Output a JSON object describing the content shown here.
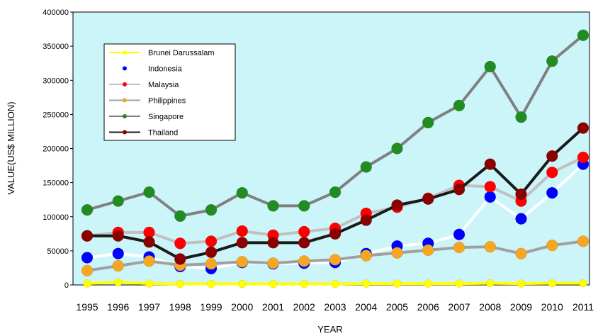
{
  "chart_data": {
    "type": "line",
    "title": "",
    "xlabel": "YEAR",
    "ylabel": "VALUE(US$ MILLION)",
    "ylim": [
      0,
      400000
    ],
    "yticks": [
      0,
      50000,
      100000,
      150000,
      200000,
      250000,
      300000,
      350000,
      400000
    ],
    "grid": false,
    "legend_position": "top-left",
    "categories": [
      "1995",
      "1996",
      "1997",
      "1998",
      "1999",
      "2000",
      "2001",
      "2002",
      "2003",
      "2004",
      "2005",
      "2006",
      "2007",
      "2008",
      "2009",
      "2010",
      "2011"
    ],
    "series": [
      {
        "name": "Brunei Darussalam",
        "line_color": "#ffff00",
        "marker_color": "#ffff00",
        "values": [
          2000,
          4000,
          2000,
          1500,
          1500,
          1500,
          1500,
          1500,
          1500,
          2000,
          2000,
          2000,
          2000,
          2500,
          2000,
          2500,
          2500
        ]
      },
      {
        "name": "Indonesia",
        "line_color": "#ffffff",
        "marker_color": "#0000ff",
        "values": [
          40000,
          46000,
          41000,
          27000,
          24000,
          33000,
          31000,
          32000,
          33000,
          46000,
          57000,
          61000,
          74000,
          129000,
          97000,
          135000,
          177000
        ]
      },
      {
        "name": "Malaysia",
        "line_color": "#c0c0c0",
        "marker_color": "#ff0000",
        "values": [
          72000,
          77000,
          77000,
          61000,
          64000,
          79000,
          73000,
          78000,
          83000,
          105000,
          114000,
          127000,
          146000,
          144000,
          123000,
          165000,
          187000
        ]
      },
      {
        "name": "Philippines",
        "line_color": "#a0a0a0",
        "marker_color": "#f5a623",
        "values": [
          21000,
          28000,
          35000,
          29000,
          31000,
          34000,
          32000,
          35000,
          37000,
          43000,
          47000,
          51000,
          55000,
          56000,
          46000,
          58000,
          64000
        ]
      },
      {
        "name": "Singapore",
        "line_color": "#808080",
        "marker_color": "#228b22",
        "values": [
          110000,
          123000,
          136000,
          101000,
          110000,
          135000,
          116000,
          116000,
          136000,
          173000,
          200000,
          238000,
          263000,
          320000,
          246000,
          328000,
          366000
        ]
      },
      {
        "name": "Thailand",
        "line_color": "#1a1a1a",
        "marker_color": "#8b0000",
        "values": [
          72000,
          72000,
          63000,
          38000,
          48000,
          62000,
          62000,
          62000,
          75000,
          95000,
          117000,
          126000,
          140000,
          177000,
          133000,
          189000,
          230000
        ]
      }
    ]
  }
}
